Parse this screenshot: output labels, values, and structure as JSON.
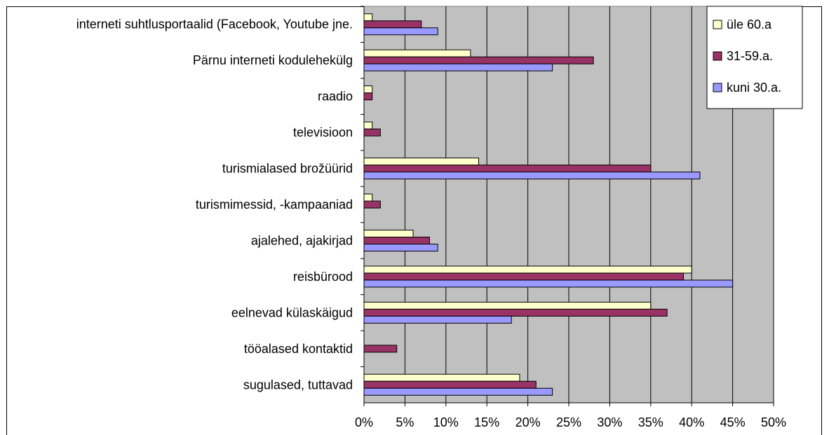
{
  "chart_data": {
    "type": "bar",
    "orientation": "horizontal",
    "categories": [
      "interneti suhtlusportaalid (Facebook, Youtube jne.",
      "Pärnu interneti kodulehekülg",
      "raadio",
      "televisioon",
      "turismialased brožüürid",
      "turismimessid, -kampaaniad",
      "ajalehed, ajakirjad",
      "reisbürood",
      "eelnevad külaskäigud",
      "tööalased kontaktid",
      "sugulased, tuttavad"
    ],
    "series": [
      {
        "name": "üle 60.a",
        "color": "#ffffcc",
        "values": [
          1,
          13,
          1,
          1,
          14,
          1,
          6,
          40,
          35,
          0,
          19
        ]
      },
      {
        "name": "31-59.a.",
        "color": "#993366",
        "values": [
          7,
          28,
          1,
          2,
          35,
          2,
          8,
          39,
          37,
          4,
          21
        ]
      },
      {
        "name": "kuni 30.a.",
        "color": "#9999ff",
        "values": [
          9,
          23,
          0,
          0,
          41,
          0,
          9,
          45,
          18,
          0,
          23
        ]
      }
    ],
    "x_ticks": [
      "0%",
      "5%",
      "10%",
      "15%",
      "20%",
      "25%",
      "30%",
      "35%",
      "40%",
      "45%",
      "50%"
    ],
    "xlim": [
      0,
      50
    ],
    "unit": "%",
    "grid": true,
    "plot_background": "#c0c0c0",
    "legend_position": "top-right"
  }
}
